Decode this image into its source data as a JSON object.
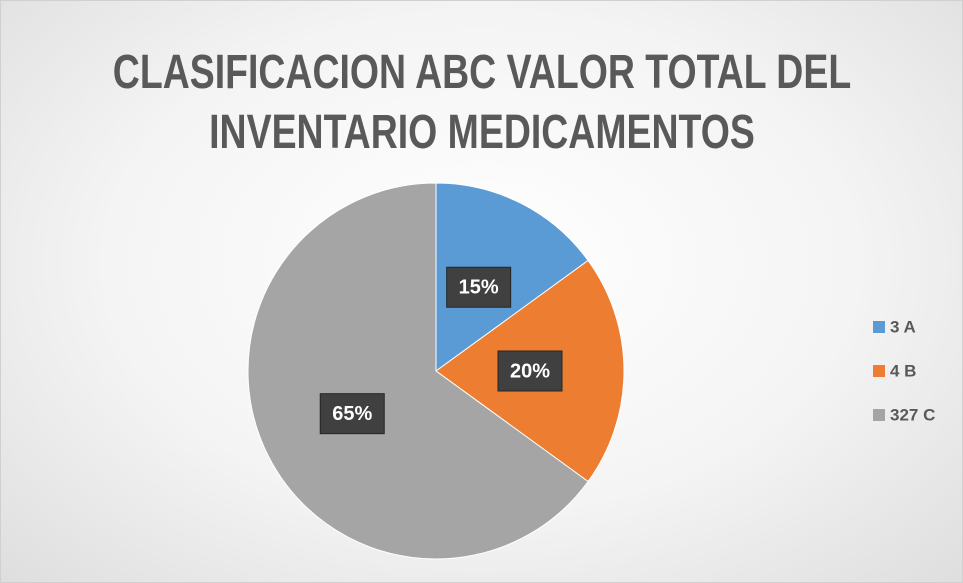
{
  "chart_data": {
    "type": "pie",
    "title": "CLASIFICACION ABC VALOR TOTAL DEL INVENTARIO MEDICAMENTOS",
    "categories": [
      "3 A",
      "4 B",
      "327 C"
    ],
    "values": [
      15,
      20,
      65
    ],
    "value_labels": [
      "15%",
      "20%",
      "65%"
    ],
    "colors": [
      "#5b9bd5",
      "#ed7d31",
      "#a5a5a5"
    ],
    "legend": "right"
  }
}
